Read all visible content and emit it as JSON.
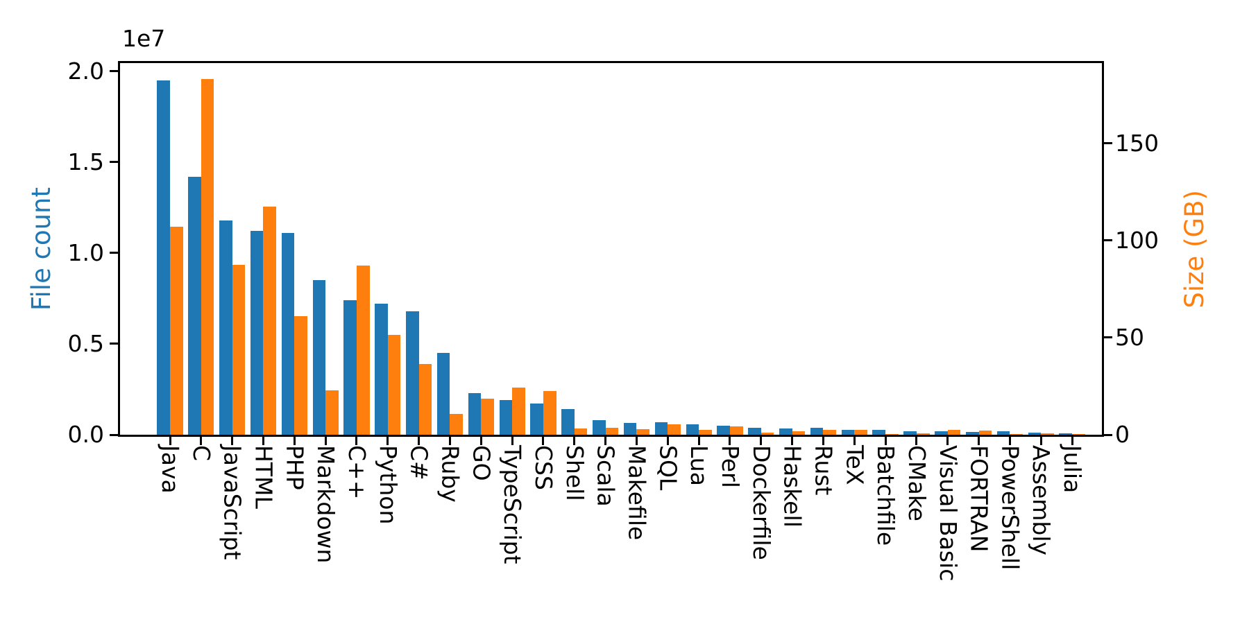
{
  "chart_data": {
    "type": "bar",
    "title": "",
    "description": "Dual-axis grouped bar chart of file count (blue, left axis, x1e7) and size in GB (orange, right axis) for the 30 largest programming languages",
    "categories": [
      "Java",
      "C",
      "JavaScript",
      "HTML",
      "PHP",
      "Markdown",
      "C++",
      "Python",
      "C#",
      "Ruby",
      "GO",
      "TypeScript",
      "CSS",
      "Shell",
      "Scala",
      "Makefile",
      "SQL",
      "Lua",
      "Perl",
      "Dockerfile",
      "Haskell",
      "Rust",
      "TeX",
      "Batchfile",
      "CMake",
      "Visual Basic",
      "FORTRAN",
      "PowerShell",
      "Assembly",
      "Julia"
    ],
    "series": [
      {
        "name": "File count",
        "axis": "left",
        "color": "#1f77b4",
        "unit": "files (x 1e7)",
        "values": [
          1.95,
          1.42,
          1.18,
          1.12,
          1.11,
          0.85,
          0.74,
          0.72,
          0.68,
          0.45,
          0.23,
          0.19,
          0.17,
          0.14,
          0.08,
          0.066,
          0.068,
          0.057,
          0.05,
          0.04,
          0.036,
          0.038,
          0.027,
          0.026,
          0.02,
          0.019,
          0.016,
          0.018,
          0.011,
          0.006
        ]
      },
      {
        "name": "Size (GB)",
        "axis": "right",
        "color": "#ff7f0e",
        "unit": "GB",
        "values": [
          107,
          183,
          87.5,
          117.5,
          61,
          23,
          87,
          51.5,
          36.5,
          10.7,
          18.6,
          24.3,
          22.5,
          3.2,
          3.6,
          2.9,
          5.4,
          2.5,
          4.3,
          1.0,
          1.8,
          2.6,
          2.4,
          0.5,
          0.6,
          2.4,
          2.2,
          0.4,
          0.8,
          0.3
        ]
      }
    ],
    "left_axis": {
      "label": "File count",
      "offset_text": "1e7",
      "tick_labels": [
        "0.0",
        "0.5",
        "1.0",
        "1.5",
        "2.0"
      ],
      "tick_values": [
        0.0,
        0.5,
        1.0,
        1.5,
        2.0
      ],
      "range": [
        0,
        2.045
      ]
    },
    "right_axis": {
      "label": "Size (GB)",
      "tick_labels": [
        "0",
        "50",
        "100",
        "150"
      ],
      "tick_values": [
        0,
        50,
        100,
        150
      ],
      "range": [
        0,
        191.3
      ]
    },
    "grid": false,
    "legend": "none",
    "spine_color": "#000000",
    "background_color": "#ffffff"
  }
}
